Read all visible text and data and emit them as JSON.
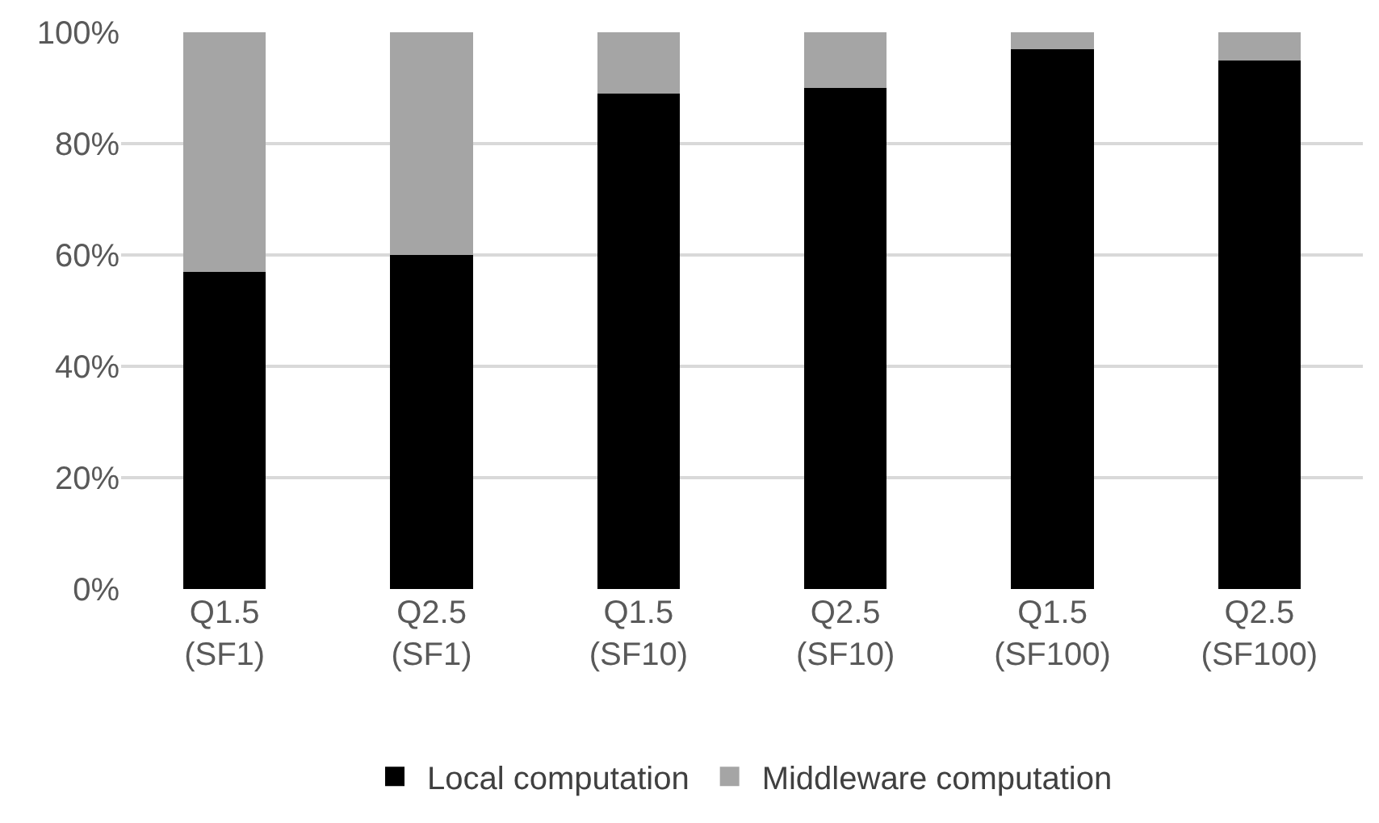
{
  "chart_data": {
    "type": "bar",
    "stacked": true,
    "categories": [
      "Q1.5\n(SF1)",
      "Q2.5\n(SF1)",
      "Q1.5\n(SF10)",
      "Q2.5\n(SF10)",
      "Q1.5\n(SF100)",
      "Q2.5\n(SF100)"
    ],
    "series": [
      {
        "name": "Local computation",
        "color": "#000000",
        "values": [
          57,
          60,
          89,
          90,
          97,
          95
        ]
      },
      {
        "name": "Middleware computation",
        "color": "#a5a5a5",
        "values": [
          43,
          40,
          11,
          10,
          3,
          5
        ]
      }
    ],
    "ylim": [
      0,
      100
    ],
    "yticks": [
      {
        "value": 0,
        "label": "0%"
      },
      {
        "value": 20,
        "label": "20%"
      },
      {
        "value": 40,
        "label": "40%"
      },
      {
        "value": 60,
        "label": "60%"
      },
      {
        "value": 80,
        "label": "80%"
      },
      {
        "value": 100,
        "label": "100%"
      }
    ],
    "grid": "y",
    "legend": "bottom"
  }
}
